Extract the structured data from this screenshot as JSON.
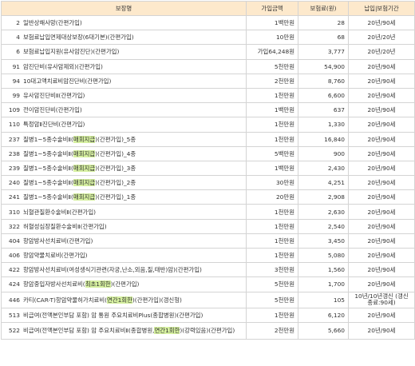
{
  "headers": {
    "name": "보장명",
    "amount": "가입금액",
    "premium": "보험료(원)",
    "period": "납입|보험기간"
  },
  "rows": [
    {
      "num": "2",
      "pre": "일반상해사망(간편가입)",
      "hl": "",
      "post": "",
      "amount": "1백만원",
      "premium": "28",
      "period": "20년/90세"
    },
    {
      "num": "4",
      "pre": "보험료납입면제대상보장(6대기본)(간편가입)",
      "hl": "",
      "post": "",
      "amount": "10만원",
      "premium": "68",
      "period": "20년/20년"
    },
    {
      "num": "6",
      "pre": "보험료납입지원(유사암진단)(간편가입)",
      "hl": "",
      "post": "",
      "amount": "가입64,248원",
      "premium": "3,777",
      "period": "20년/20년"
    },
    {
      "num": "91",
      "pre": "암진단비(유사암제외)(간편가입)",
      "hl": "",
      "post": "",
      "amount": "5천만원",
      "premium": "54,900",
      "period": "20년/90세"
    },
    {
      "num": "94",
      "pre": "10대고액치료비암진단비(간편가입)",
      "hl": "",
      "post": "",
      "amount": "2천만원",
      "premium": "8,760",
      "period": "20년/90세"
    },
    {
      "num": "99",
      "pre": "유사암진단비Ⅱ(간편가입)",
      "hl": "",
      "post": "",
      "amount": "1천만원",
      "premium": "6,600",
      "period": "20년/90세"
    },
    {
      "num": "109",
      "pre": "전이암진단비(간편가입)",
      "hl": "",
      "post": "",
      "amount": "1백만원",
      "premium": "637",
      "period": "20년/90세"
    },
    {
      "num": "110",
      "pre": "특정암Ⅱ진단비(간편가입)",
      "hl": "",
      "post": "",
      "amount": "1천만원",
      "premium": "1,330",
      "period": "20년/90세"
    },
    {
      "num": "237",
      "pre": "질병1~5종수술비Ⅱ(",
      "hl": "매회지급",
      "post": ")(간편가입)_5종",
      "amount": "1천만원",
      "premium": "16,840",
      "period": "20년/90세"
    },
    {
      "num": "238",
      "pre": "질병1~5종수술비Ⅱ(",
      "hl": "매회지급",
      "post": ")(간편가입)_4종",
      "amount": "5백만원",
      "premium": "900",
      "period": "20년/90세"
    },
    {
      "num": "239",
      "pre": "질병1~5종수술비Ⅱ(",
      "hl": "매회지급",
      "post": ")(간편가입)_3종",
      "amount": "1백만원",
      "premium": "2,430",
      "period": "20년/90세"
    },
    {
      "num": "240",
      "pre": "질병1~5종수술비Ⅱ(",
      "hl": "매회지급",
      "post": ")(간편가입)_2종",
      "amount": "30만원",
      "premium": "4,251",
      "period": "20년/90세"
    },
    {
      "num": "241",
      "pre": "질병1~5종수술비Ⅱ(",
      "hl": "매회지급",
      "post": ")(간편가입)_1종",
      "amount": "20만원",
      "premium": "2,908",
      "period": "20년/90세"
    },
    {
      "num": "310",
      "pre": "뇌혈관질환수술비Ⅱ(간편가입)",
      "hl": "",
      "post": "",
      "amount": "1천만원",
      "premium": "2,630",
      "period": "20년/90세"
    },
    {
      "num": "322",
      "pre": "허혈성심장질환수술비Ⅱ(간편가입)",
      "hl": "",
      "post": "",
      "amount": "1천만원",
      "premium": "2,540",
      "period": "20년/90세"
    },
    {
      "num": "404",
      "pre": "항암방사선치료비(간편가입)",
      "hl": "",
      "post": "",
      "amount": "1천만원",
      "premium": "3,450",
      "period": "20년/90세"
    },
    {
      "num": "406",
      "pre": "항암약물치료비(간편가입)",
      "hl": "",
      "post": "",
      "amount": "1천만원",
      "premium": "5,080",
      "period": "20년/90세"
    },
    {
      "num": "422",
      "pre": "항암방사선치료비(여성생식기관련(자궁,난소,외음,질,태반)암)(간편가입)",
      "hl": "",
      "post": "",
      "amount": "3천만원",
      "premium": "1,560",
      "period": "20년/90세"
    },
    {
      "num": "424",
      "pre": "항암중입자방사선치료비(",
      "hl": "최초1회한",
      "post": ")(간편가입)",
      "amount": "5천만원",
      "premium": "1,700",
      "period": "20년/90세"
    },
    {
      "num": "446",
      "pre": "카티(CAR-T)항암약물허가치료비(",
      "hl": "연간1회한",
      "post": ")(간편가입)(갱신형)",
      "amount": "5천만원",
      "premium": "105",
      "period": "10년/10년갱신 (갱신종료:90세)",
      "wrapPeriod": true
    },
    {
      "num": "513",
      "pre": "비급여(전액본인부담 포함) 암 통원 주요치료비Plus(종합병원)(간편가입)",
      "hl": "",
      "post": "",
      "amount": "1천만원",
      "premium": "6,120",
      "period": "20년/90세"
    },
    {
      "num": "522",
      "pre": "비급여(전액본인부담 포함) 암 주요치료비Ⅱ(종합병원,",
      "hl": "연간1회한",
      "post": ")(강력있음)(간편가입)",
      "amount": "2천만원",
      "premium": "5,660",
      "period": "20년/90세",
      "wrapName": true
    }
  ]
}
